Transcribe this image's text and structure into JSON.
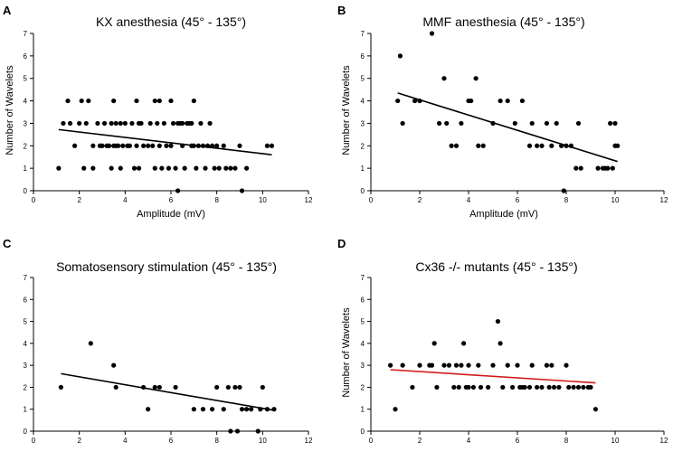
{
  "chart_data": [
    {
      "panel": "A",
      "type": "scatter",
      "title": "KX anesthesia (45° - 135°)",
      "xlabel": "Amplitude (mV)",
      "ylabel": "Number of Wavelets",
      "xlim": [
        0,
        12
      ],
      "ylim": [
        0,
        7
      ],
      "xticks": [
        "0",
        "2",
        "4",
        "6",
        "8",
        "10",
        "12"
      ],
      "yticks": [
        "0",
        "1",
        "2",
        "3",
        "4",
        "5",
        "6",
        "7"
      ],
      "trend": {
        "x1": 1.1,
        "y1": 2.72,
        "x2": 10.4,
        "y2": 1.6,
        "color": "#000000"
      },
      "points": [
        [
          1.1,
          1
        ],
        [
          1.3,
          3
        ],
        [
          1.5,
          4
        ],
        [
          1.6,
          3
        ],
        [
          1.8,
          2
        ],
        [
          2.0,
          3
        ],
        [
          2.1,
          4
        ],
        [
          2.3,
          3
        ],
        [
          2.4,
          4
        ],
        [
          2.2,
          1
        ],
        [
          2.6,
          2
        ],
        [
          2.8,
          3
        ],
        [
          2.9,
          2
        ],
        [
          2.6,
          1
        ],
        [
          3.0,
          2
        ],
        [
          3.1,
          3
        ],
        [
          3.2,
          2
        ],
        [
          3.3,
          2
        ],
        [
          3.4,
          3
        ],
        [
          3.5,
          4
        ],
        [
          3.5,
          2
        ],
        [
          3.6,
          3
        ],
        [
          3.6,
          2
        ],
        [
          3.7,
          2
        ],
        [
          3.8,
          3
        ],
        [
          3.9,
          2
        ],
        [
          3.8,
          1
        ],
        [
          3.4,
          1
        ],
        [
          4.0,
          3
        ],
        [
          4.1,
          2
        ],
        [
          4.2,
          2
        ],
        [
          4.3,
          3
        ],
        [
          4.4,
          1
        ],
        [
          4.5,
          2
        ],
        [
          4.5,
          4
        ],
        [
          4.6,
          3
        ],
        [
          4.6,
          1
        ],
        [
          4.7,
          3
        ],
        [
          4.8,
          2
        ],
        [
          5.0,
          2
        ],
        [
          5.1,
          3
        ],
        [
          5.2,
          2
        ],
        [
          5.3,
          4
        ],
        [
          5.3,
          1
        ],
        [
          5.4,
          3
        ],
        [
          5.5,
          2
        ],
        [
          5.5,
          4
        ],
        [
          5.6,
          1
        ],
        [
          5.7,
          3
        ],
        [
          5.8,
          2
        ],
        [
          5.9,
          1
        ],
        [
          6.0,
          4
        ],
        [
          6.0,
          2
        ],
        [
          6.1,
          3
        ],
        [
          6.2,
          1
        ],
        [
          6.3,
          0
        ],
        [
          6.3,
          3
        ],
        [
          6.4,
          3
        ],
        [
          6.5,
          2
        ],
        [
          6.5,
          3
        ],
        [
          6.6,
          1
        ],
        [
          6.7,
          3
        ],
        [
          6.8,
          3
        ],
        [
          6.9,
          2
        ],
        [
          6.9,
          3
        ],
        [
          7.0,
          4
        ],
        [
          7.0,
          2
        ],
        [
          7.1,
          1
        ],
        [
          7.2,
          2
        ],
        [
          7.3,
          3
        ],
        [
          7.4,
          2
        ],
        [
          7.5,
          1
        ],
        [
          7.6,
          2
        ],
        [
          7.7,
          3
        ],
        [
          7.8,
          2
        ],
        [
          7.9,
          1
        ],
        [
          8.0,
          2
        ],
        [
          8.1,
          1
        ],
        [
          8.3,
          2
        ],
        [
          8.4,
          1
        ],
        [
          8.6,
          1
        ],
        [
          8.8,
          1
        ],
        [
          9.0,
          2
        ],
        [
          9.1,
          0
        ],
        [
          9.3,
          1
        ],
        [
          10.2,
          2
        ],
        [
          10.4,
          2
        ]
      ]
    },
    {
      "panel": "B",
      "type": "scatter",
      "title": "MMF anesthesia (45° - 135°)",
      "xlabel": "Amplitude (mV)",
      "ylabel": "Number of Wavelets",
      "xlim": [
        0,
        12
      ],
      "ylim": [
        0,
        7
      ],
      "xticks": [
        "0",
        "2",
        "4",
        "6",
        "8",
        "10",
        "12"
      ],
      "yticks": [
        "0",
        "1",
        "2",
        "3",
        "4",
        "5",
        "6",
        "7"
      ],
      "trend": {
        "x1": 1.1,
        "y1": 4.35,
        "x2": 10.1,
        "y2": 1.3,
        "color": "#000000"
      },
      "points": [
        [
          1.1,
          4
        ],
        [
          1.2,
          6
        ],
        [
          1.3,
          3
        ],
        [
          1.8,
          4
        ],
        [
          2.0,
          4
        ],
        [
          2.5,
          7
        ],
        [
          2.8,
          3
        ],
        [
          3.0,
          5
        ],
        [
          3.1,
          3
        ],
        [
          3.3,
          2
        ],
        [
          3.5,
          2
        ],
        [
          3.7,
          3
        ],
        [
          4.0,
          4
        ],
        [
          4.1,
          4
        ],
        [
          4.3,
          5
        ],
        [
          4.4,
          2
        ],
        [
          4.6,
          2
        ],
        [
          5.0,
          3
        ],
        [
          5.3,
          4
        ],
        [
          5.6,
          4
        ],
        [
          5.9,
          3
        ],
        [
          6.2,
          4
        ],
        [
          6.5,
          2
        ],
        [
          6.6,
          3
        ],
        [
          6.8,
          2
        ],
        [
          7.0,
          2
        ],
        [
          7.2,
          3
        ],
        [
          7.4,
          2
        ],
        [
          7.6,
          3
        ],
        [
          7.8,
          2
        ],
        [
          7.9,
          0
        ],
        [
          8.0,
          2
        ],
        [
          8.2,
          2
        ],
        [
          8.4,
          1
        ],
        [
          8.5,
          3
        ],
        [
          8.6,
          1
        ],
        [
          9.3,
          1
        ],
        [
          9.5,
          1
        ],
        [
          9.6,
          1
        ],
        [
          9.7,
          1
        ],
        [
          9.8,
          3
        ],
        [
          9.9,
          1
        ],
        [
          10.0,
          3
        ],
        [
          10.0,
          2
        ],
        [
          10.1,
          2
        ]
      ]
    },
    {
      "panel": "C",
      "type": "scatter",
      "title": "Somatosensory stimulation (45° - 135°)",
      "xlabel": "",
      "ylabel": "",
      "xlim": [
        0,
        12
      ],
      "ylim": [
        0,
        7
      ],
      "xticks": [
        "0",
        "2",
        "4",
        "6",
        "8",
        "10",
        "12"
      ],
      "yticks": [
        "0",
        "1",
        "2",
        "3",
        "4",
        "5",
        "6",
        "7"
      ],
      "trend": {
        "x1": 1.2,
        "y1": 2.62,
        "x2": 10.5,
        "y2": 0.95,
        "color": "#000000"
      },
      "points": [
        [
          1.2,
          2
        ],
        [
          2.5,
          4
        ],
        [
          3.5,
          3
        ],
        [
          3.6,
          2
        ],
        [
          4.8,
          2
        ],
        [
          5.0,
          1
        ],
        [
          5.3,
          2
        ],
        [
          5.5,
          2
        ],
        [
          6.2,
          2
        ],
        [
          7.0,
          1
        ],
        [
          7.4,
          1
        ],
        [
          7.8,
          1
        ],
        [
          8.0,
          2
        ],
        [
          8.3,
          1
        ],
        [
          8.5,
          2
        ],
        [
          8.6,
          0
        ],
        [
          8.8,
          2
        ],
        [
          8.9,
          0
        ],
        [
          9.0,
          2
        ],
        [
          9.1,
          1
        ],
        [
          9.3,
          1
        ],
        [
          9.5,
          1
        ],
        [
          9.8,
          0
        ],
        [
          9.9,
          1
        ],
        [
          10.0,
          2
        ],
        [
          10.2,
          1
        ],
        [
          10.5,
          1
        ]
      ]
    },
    {
      "panel": "D",
      "type": "scatter",
      "title": "Cx36 -/- mutants (45° - 135°)",
      "xlabel": "",
      "ylabel": "Number of Wavelets",
      "xlim": [
        0,
        12
      ],
      "ylim": [
        0,
        7
      ],
      "xticks": [
        "0",
        "2",
        "4",
        "6",
        "8",
        "10",
        "12"
      ],
      "yticks": [
        "0",
        "1",
        "2",
        "3",
        "4",
        "5",
        "6",
        "7"
      ],
      "trend": {
        "x1": 0.8,
        "y1": 2.8,
        "x2": 9.2,
        "y2": 2.2,
        "color": "#d11a1a"
      },
      "points": [
        [
          0.8,
          3
        ],
        [
          1.0,
          1
        ],
        [
          1.3,
          3
        ],
        [
          1.7,
          2
        ],
        [
          2.0,
          3
        ],
        [
          2.4,
          3
        ],
        [
          2.5,
          3
        ],
        [
          2.6,
          4
        ],
        [
          2.7,
          2
        ],
        [
          3.0,
          3
        ],
        [
          3.2,
          3
        ],
        [
          3.4,
          2
        ],
        [
          3.5,
          3
        ],
        [
          3.6,
          2
        ],
        [
          3.7,
          3
        ],
        [
          3.8,
          4
        ],
        [
          3.9,
          2
        ],
        [
          4.0,
          3
        ],
        [
          4.0,
          2
        ],
        [
          4.2,
          2
        ],
        [
          4.4,
          3
        ],
        [
          4.5,
          2
        ],
        [
          4.8,
          2
        ],
        [
          5.0,
          3
        ],
        [
          5.2,
          5
        ],
        [
          5.3,
          4
        ],
        [
          5.4,
          2
        ],
        [
          5.6,
          3
        ],
        [
          5.8,
          2
        ],
        [
          6.0,
          3
        ],
        [
          6.1,
          2
        ],
        [
          6.2,
          2
        ],
        [
          6.3,
          2
        ],
        [
          6.5,
          2
        ],
        [
          6.6,
          3
        ],
        [
          6.8,
          2
        ],
        [
          7.0,
          2
        ],
        [
          7.2,
          3
        ],
        [
          7.3,
          2
        ],
        [
          7.4,
          3
        ],
        [
          7.5,
          2
        ],
        [
          7.7,
          2
        ],
        [
          8.0,
          3
        ],
        [
          8.1,
          2
        ],
        [
          8.3,
          2
        ],
        [
          8.5,
          2
        ],
        [
          8.7,
          2
        ],
        [
          8.9,
          2
        ],
        [
          9.0,
          2
        ],
        [
          9.2,
          1
        ]
      ]
    }
  ]
}
